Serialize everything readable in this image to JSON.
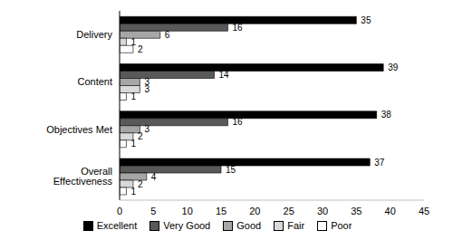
{
  "chart_data": {
    "type": "bar",
    "orientation": "horizontal",
    "categories": [
      "Delivery",
      "Content",
      "Objectives Met",
      "Overall Effectiveness"
    ],
    "series": [
      {
        "name": "Excellent",
        "color": "#000000",
        "values": [
          35,
          39,
          38,
          37
        ]
      },
      {
        "name": "Very Good",
        "color": "#595959",
        "values": [
          16,
          14,
          16,
          15
        ]
      },
      {
        "name": "Good",
        "color": "#a6a6a6",
        "values": [
          6,
          3,
          3,
          4
        ]
      },
      {
        "name": "Fair",
        "color": "#d9d9d9",
        "values": [
          1,
          3,
          2,
          2
        ]
      },
      {
        "name": "Poor",
        "color": "#ffffff",
        "values": [
          2,
          1,
          1,
          1
        ]
      }
    ],
    "xlim": [
      0,
      45
    ],
    "xticks": [
      0,
      5,
      10,
      15,
      20,
      25,
      30,
      35,
      40,
      45
    ],
    "grid": false,
    "data_labels": true,
    "legend": "bottom"
  }
}
